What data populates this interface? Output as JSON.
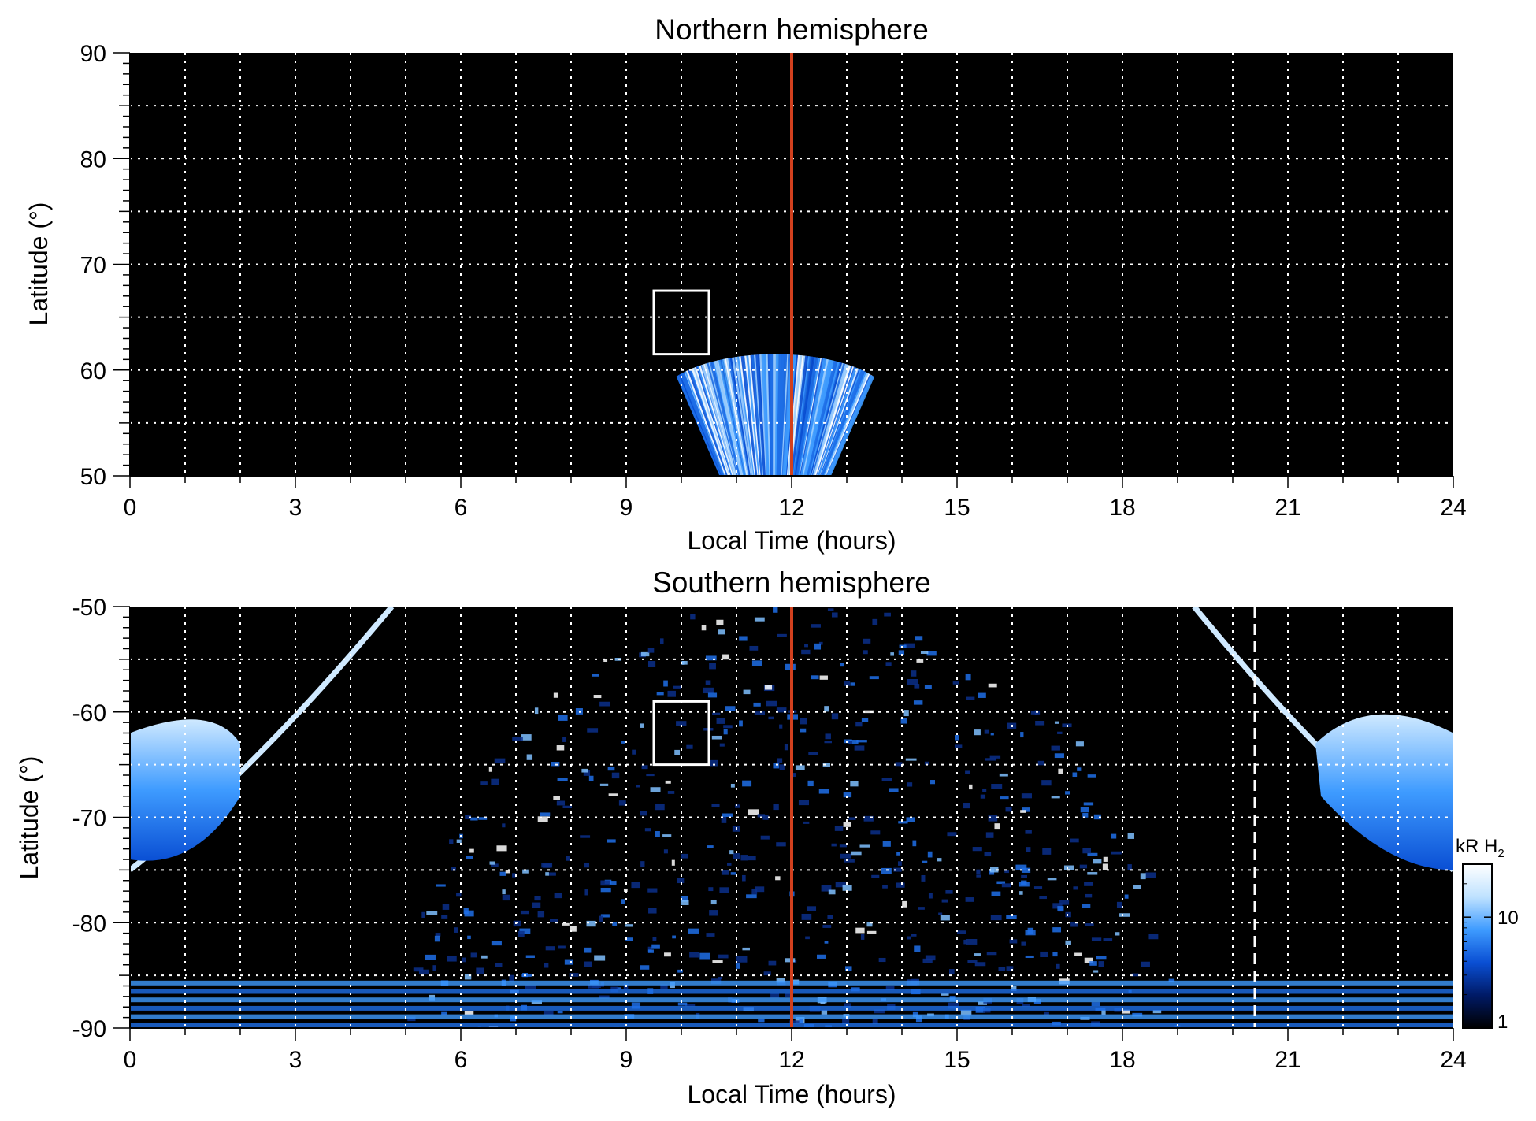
{
  "chart_data": [
    {
      "type": "heatmap",
      "title": "Northern hemisphere",
      "xlabel": "Local Time (hours)",
      "ylabel": "Latitude (°)",
      "xlim": [
        0,
        24
      ],
      "ylim": [
        50,
        90
      ],
      "x_ticks": [
        0,
        3,
        6,
        9,
        12,
        15,
        18,
        21,
        24
      ],
      "y_ticks": [
        50,
        60,
        70,
        80,
        90
      ],
      "grid": true,
      "grid_style": "dotted white",
      "background": "#000000",
      "reference_line": {
        "x": 12,
        "color": "#d2401e"
      },
      "box": {
        "x": [
          9.5,
          10.5
        ],
        "y": [
          61.5,
          67.5
        ]
      },
      "emission_region": {
        "x": [
          9.6,
          13.8
        ],
        "y": [
          50,
          61.5
        ]
      }
    },
    {
      "type": "heatmap",
      "title": "Southern hemisphere",
      "xlabel": "Local Time (hours)",
      "ylabel": "Latitude (°)",
      "xlim": [
        0,
        24
      ],
      "ylim": [
        -90,
        -50
      ],
      "x_ticks": [
        0,
        3,
        6,
        9,
        12,
        15,
        18,
        21,
        24
      ],
      "y_ticks": [
        -50,
        -60,
        -70,
        -80,
        -90
      ],
      "grid": true,
      "grid_style": "dotted white",
      "background": "#000000",
      "reference_line": {
        "x": 12,
        "color": "#d2401e"
      },
      "dashed_line": {
        "x": 20.4,
        "color": "#ffffff"
      },
      "box": {
        "x": [
          9.5,
          10.5
        ],
        "y": [
          -65,
          -59
        ]
      },
      "colorbar": {
        "label_main": "kR H",
        "label_sub": "2",
        "ticks": [
          1,
          10
        ],
        "scale": "log",
        "range": [
          1,
          30
        ],
        "colors": [
          "#000000",
          "#001a66",
          "#0a4fd4",
          "#3e9bff",
          "#bfe2ff",
          "#ffffff"
        ]
      }
    }
  ]
}
